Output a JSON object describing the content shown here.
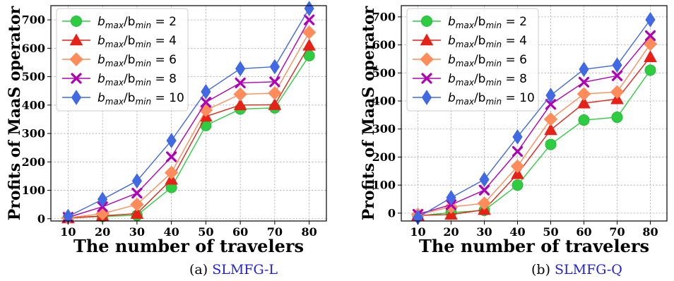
{
  "chart_data": [
    {
      "type": "line",
      "caption_prefix": "(a)",
      "caption_name": "SLMFG-L",
      "xlabel": "The number of travelers",
      "ylabel": "Profits of MaaS operator",
      "x": [
        10,
        20,
        30,
        40,
        50,
        60,
        70,
        80
      ],
      "xlim": [
        5,
        85
      ],
      "ylim": [
        -8,
        750
      ],
      "yticks": [
        0,
        100,
        200,
        300,
        400,
        500,
        600,
        700
      ],
      "grid": true,
      "legend_position": "upper-left",
      "series": [
        {
          "name": "b_max/b_min = 2",
          "label_main": "b",
          "sub1": "max",
          "slash": "/b",
          "sub2": "min",
          "eq": " = 2",
          "color": "#2ecc40",
          "edge": "#28b83a",
          "marker": "circle",
          "values": [
            3,
            8,
            12,
            110,
            328,
            386,
            390,
            574
          ]
        },
        {
          "name": "b_max/b_min = 4",
          "label_main": "b",
          "sub1": "max",
          "slash": "/b",
          "sub2": "min",
          "eq": " = 4",
          "color": "#e62117",
          "edge": "#e62117",
          "marker": "triangle",
          "values": [
            2,
            10,
            18,
            138,
            360,
            400,
            401,
            610
          ]
        },
        {
          "name": "b_max/b_min = 6",
          "label_main": "b",
          "sub1": "max",
          "slash": "/b",
          "sub2": "min",
          "eq": " = 6",
          "color": "#ff8c5a",
          "edge": "#ff8c5a",
          "marker": "diamond",
          "values": [
            3,
            18,
            50,
            162,
            382,
            438,
            442,
            656
          ]
        },
        {
          "name": "b_max/b_min = 8",
          "label_main": "b",
          "sub1": "max",
          "slash": "/b",
          "sub2": "min",
          "eq": " = 8",
          "color": "#b000b5",
          "edge": "#b000b5",
          "marker": "x",
          "values": [
            5,
            42,
            90,
            218,
            410,
            478,
            482,
            700
          ]
        },
        {
          "name": "b_max/b_min = 10",
          "label_main": "b",
          "sub1": "max",
          "slash": "/b",
          "sub2": "min",
          "eq": " = 10",
          "color": "#4169e1",
          "edge": "#4169e1",
          "marker": "thin-diamond",
          "values": [
            8,
            68,
            133,
            275,
            447,
            528,
            535,
            740
          ]
        }
      ]
    },
    {
      "type": "line",
      "caption_prefix": "(b)",
      "caption_name": "SLMFG-Q",
      "xlabel": "The number of travelers",
      "ylabel": "Profits of MaaS operator",
      "x": [
        10,
        20,
        30,
        40,
        50,
        60,
        70,
        80
      ],
      "xlim": [
        5,
        85
      ],
      "ylim": [
        -28,
        740
      ],
      "yticks": [
        0,
        100,
        200,
        300,
        400,
        500,
        600,
        700
      ],
      "grid": true,
      "legend_position": "upper-left",
      "series": [
        {
          "name": "b_max/b_min = 2",
          "label_main": "b",
          "sub1": "max",
          "slash": "/b",
          "sub2": "min",
          "eq": " = 2",
          "color": "#2ecc40",
          "edge": "#28b83a",
          "marker": "circle",
          "values": [
            -10,
            2,
            10,
            100,
            245,
            332,
            342,
            510
          ]
        },
        {
          "name": "b_max/b_min = 4",
          "label_main": "b",
          "sub1": "max",
          "slash": "/b",
          "sub2": "min",
          "eq": " = 4",
          "color": "#e62117",
          "edge": "#e62117",
          "marker": "triangle",
          "values": [
            -8,
            -5,
            12,
            140,
            297,
            392,
            407,
            557
          ]
        },
        {
          "name": "b_max/b_min = 6",
          "label_main": "b",
          "sub1": "max",
          "slash": "/b",
          "sub2": "min",
          "eq": " = 6",
          "color": "#ff8c5a",
          "edge": "#ff8c5a",
          "marker": "diamond",
          "values": [
            -5,
            22,
            35,
            167,
            335,
            425,
            432,
            603
          ]
        },
        {
          "name": "b_max/b_min = 8",
          "label_main": "b",
          "sub1": "max",
          "slash": "/b",
          "sub2": "min",
          "eq": " = 8",
          "color": "#b000b5",
          "edge": "#b000b5",
          "marker": "x",
          "values": [
            -4,
            30,
            82,
            220,
            388,
            467,
            490,
            633
          ]
        },
        {
          "name": "b_max/b_min = 10",
          "label_main": "b",
          "sub1": "max",
          "slash": "/b",
          "sub2": "min",
          "eq": " = 10",
          "color": "#4169e1",
          "edge": "#4169e1",
          "marker": "thin-diamond",
          "values": [
            -15,
            55,
            120,
            272,
            420,
            513,
            528,
            690
          ]
        }
      ]
    }
  ]
}
